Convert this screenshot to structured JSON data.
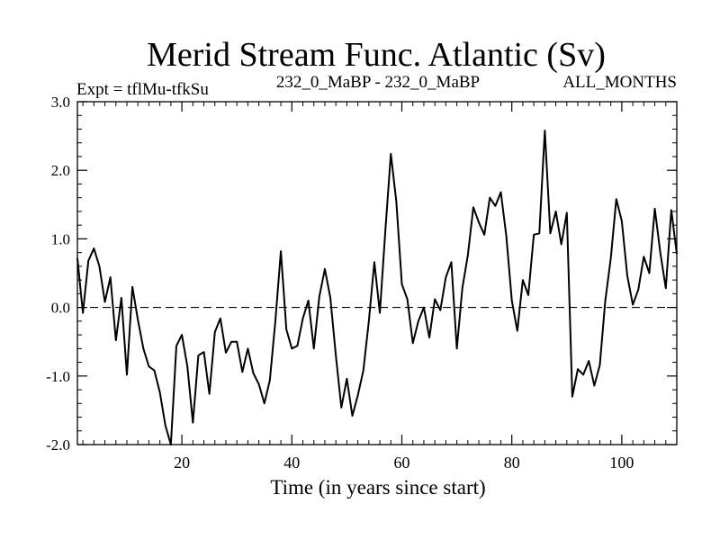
{
  "chart_data": {
    "type": "line",
    "title": "Merid Stream Func. Atlantic (Sv)",
    "subtitle_left": "Expt = tflMu-tfkSu",
    "subtitle_center": "232_0_MaBP - 232_0_MaBP",
    "subtitle_right": "ALL_MONTHS",
    "xlabel": "Time (in years since start)",
    "ylabel": "",
    "xlim": [
      1,
      110
    ],
    "ylim": [
      -2.0,
      3.0
    ],
    "x_ticks": [
      20,
      40,
      60,
      80,
      100
    ],
    "x_tick_labels": [
      "20",
      "40",
      "60",
      "80",
      "100"
    ],
    "y_ticks": [
      -2.0,
      -1.0,
      0.0,
      1.0,
      2.0,
      3.0
    ],
    "y_tick_labels": [
      "-2.0",
      "-1.0",
      "0.0",
      "1.0",
      "2.0",
      "3.0"
    ],
    "reference_line": 0.0,
    "grid": false,
    "series": [
      {
        "name": "Merid Stream Func. Atlantic",
        "x": [
          1,
          2,
          3,
          4,
          5,
          6,
          7,
          8,
          9,
          10,
          11,
          12,
          13,
          14,
          15,
          16,
          17,
          18,
          19,
          20,
          21,
          22,
          23,
          24,
          25,
          26,
          27,
          28,
          29,
          30,
          31,
          32,
          33,
          34,
          35,
          36,
          37,
          38,
          39,
          40,
          41,
          42,
          43,
          44,
          45,
          46,
          47,
          48,
          49,
          50,
          51,
          52,
          53,
          54,
          55,
          56,
          57,
          58,
          59,
          60,
          61,
          62,
          63,
          64,
          65,
          66,
          67,
          68,
          69,
          70,
          71,
          72,
          73,
          74,
          75,
          76,
          77,
          78,
          79,
          80,
          81,
          82,
          83,
          84,
          85,
          86,
          87,
          88,
          89,
          90,
          91,
          92,
          93,
          94,
          95,
          96,
          97,
          98,
          99,
          100,
          101,
          102,
          103,
          104,
          105,
          106,
          107,
          108,
          109,
          110
        ],
        "values": [
          0.72,
          -0.08,
          0.68,
          0.86,
          0.6,
          0.08,
          0.44,
          -0.48,
          0.14,
          -0.98,
          0.3,
          -0.18,
          -0.6,
          -0.86,
          -0.92,
          -1.24,
          -1.72,
          -2.0,
          -0.56,
          -0.4,
          -0.86,
          -1.68,
          -0.7,
          -0.65,
          -1.26,
          -0.36,
          -0.16,
          -0.66,
          -0.5,
          -0.5,
          -0.94,
          -0.6,
          -0.96,
          -1.12,
          -1.4,
          -1.06,
          -0.2,
          0.82,
          -0.32,
          -0.6,
          -0.56,
          -0.16,
          0.1,
          -0.6,
          0.16,
          0.56,
          0.14,
          -0.7,
          -1.46,
          -1.04,
          -1.58,
          -1.28,
          -0.92,
          -0.2,
          0.66,
          -0.08,
          1.12,
          2.24,
          1.54,
          0.34,
          0.12,
          -0.52,
          -0.2,
          0.0,
          -0.44,
          0.12,
          -0.04,
          0.44,
          0.66,
          -0.6,
          0.28,
          0.76,
          1.46,
          1.24,
          1.06,
          1.6,
          1.48,
          1.68,
          1.04,
          0.1,
          -0.34,
          0.4,
          0.18,
          1.06,
          1.08,
          2.58,
          1.08,
          1.4,
          0.92,
          1.38,
          -1.3,
          -0.9,
          -0.98,
          -0.78,
          -1.14,
          -0.84,
          0.1,
          0.72,
          1.58,
          1.26,
          0.46,
          0.04,
          0.26,
          0.74,
          0.5,
          1.44,
          0.8,
          0.28,
          1.42,
          0.78
        ]
      }
    ]
  }
}
